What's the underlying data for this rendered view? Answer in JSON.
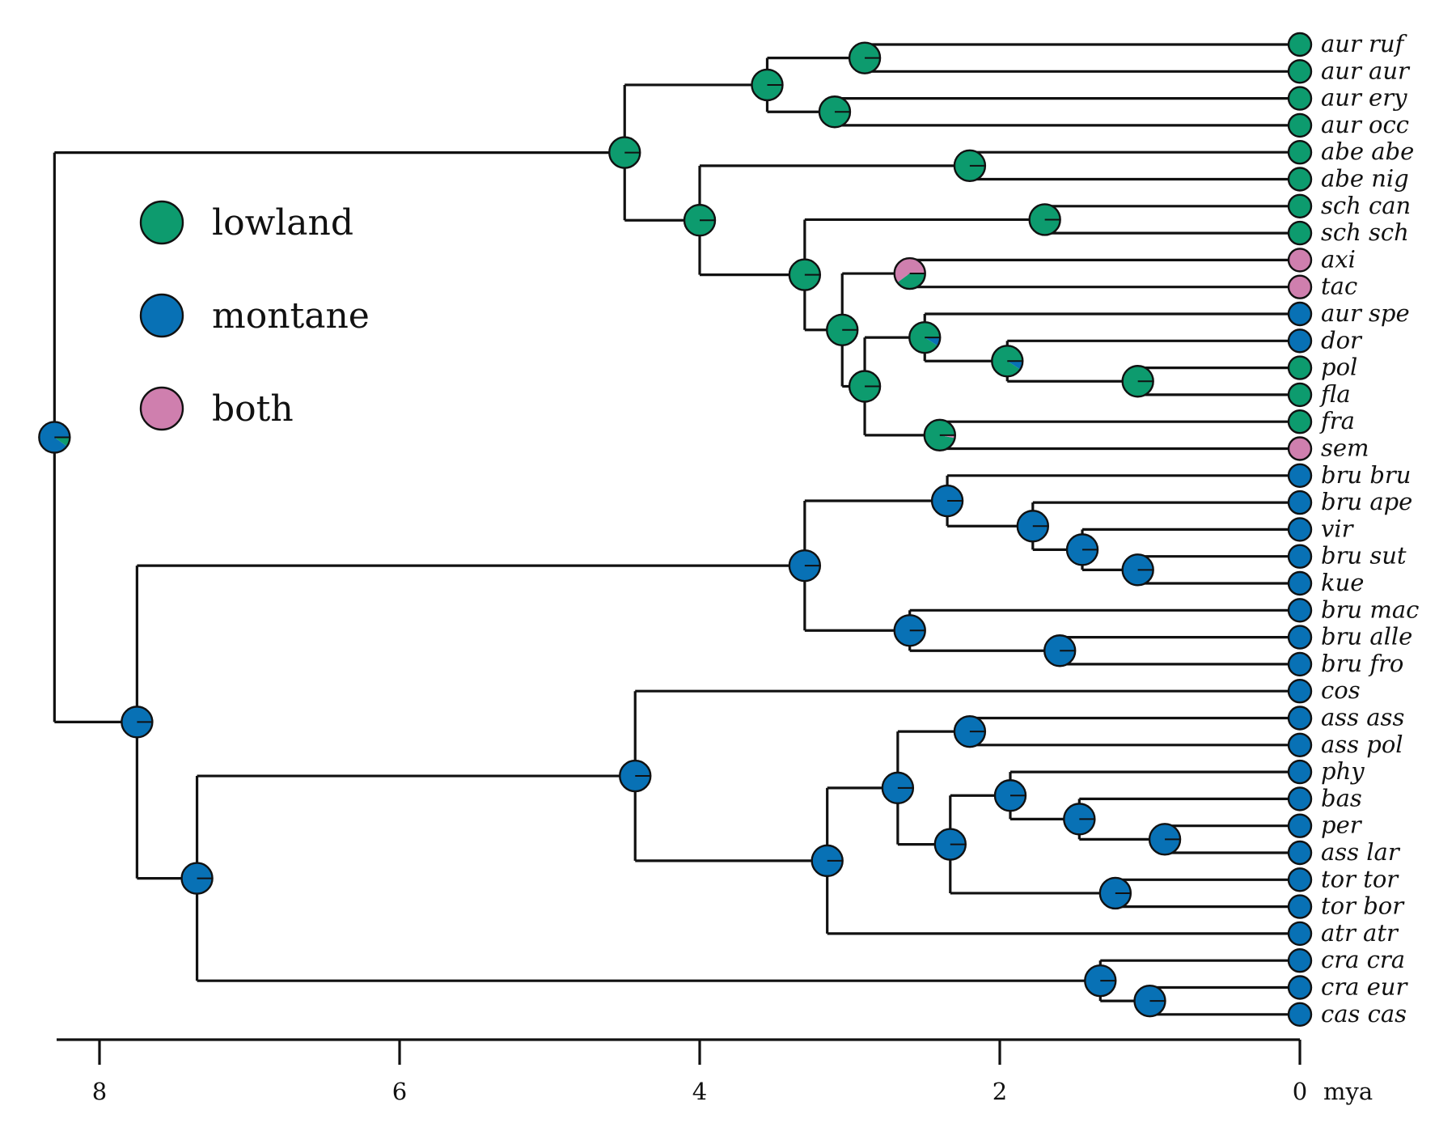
{
  "colors": {
    "lowland": "#0d9b6e",
    "montane": "#0871b5",
    "both": "#cf7fae",
    "line": "#111111"
  },
  "legend": {
    "items": [
      {
        "state": "lowland",
        "label": "lowland"
      },
      {
        "state": "montane",
        "label": "montane"
      },
      {
        "state": "both",
        "label": "both"
      }
    ]
  },
  "axis": {
    "ticks": [
      {
        "value": 8,
        "label": "8"
      },
      {
        "value": 6,
        "label": "6"
      },
      {
        "value": 4,
        "label": "4"
      },
      {
        "value": 2,
        "label": "2"
      },
      {
        "value": 0,
        "label": "0"
      }
    ],
    "unit": "mya",
    "range": [
      8.45,
      0
    ]
  },
  "tips": [
    {
      "label": "aur ruf",
      "state": "lowland"
    },
    {
      "label": "aur aur",
      "state": "lowland"
    },
    {
      "label": "aur ery",
      "state": "lowland"
    },
    {
      "label": "aur occ",
      "state": "lowland"
    },
    {
      "label": "abe abe",
      "state": "lowland"
    },
    {
      "label": "abe nig",
      "state": "lowland"
    },
    {
      "label": "sch can",
      "state": "lowland"
    },
    {
      "label": "sch sch",
      "state": "lowland"
    },
    {
      "label": "axi",
      "state": "both"
    },
    {
      "label": "tac",
      "state": "both"
    },
    {
      "label": "aur spe",
      "state": "montane"
    },
    {
      "label": "dor",
      "state": "montane"
    },
    {
      "label": "pol",
      "state": "lowland"
    },
    {
      "label": "fla",
      "state": "lowland"
    },
    {
      "label": "fra",
      "state": "lowland"
    },
    {
      "label": "sem",
      "state": "both"
    },
    {
      "label": "bru bru",
      "state": "montane"
    },
    {
      "label": "bru ape",
      "state": "montane"
    },
    {
      "label": "vir",
      "state": "montane"
    },
    {
      "label": "bru sut",
      "state": "montane"
    },
    {
      "label": "kue",
      "state": "montane"
    },
    {
      "label": "bru mac",
      "state": "montane"
    },
    {
      "label": "bru alle",
      "state": "montane"
    },
    {
      "label": "bru fro",
      "state": "montane"
    },
    {
      "label": "cos",
      "state": "montane"
    },
    {
      "label": "ass ass",
      "state": "montane"
    },
    {
      "label": "ass pol",
      "state": "montane"
    },
    {
      "label": "phy",
      "state": "montane"
    },
    {
      "label": "bas",
      "state": "montane"
    },
    {
      "label": "per",
      "state": "montane"
    },
    {
      "label": "ass lar",
      "state": "montane"
    },
    {
      "label": "tor tor",
      "state": "montane"
    },
    {
      "label": "tor bor",
      "state": "montane"
    },
    {
      "label": "atr atr",
      "state": "montane"
    },
    {
      "label": "cra cra",
      "state": "montane"
    },
    {
      "label": "cra eur",
      "state": "montane"
    },
    {
      "label": "cas cas",
      "state": "montane"
    }
  ],
  "nodes": [
    {
      "id": "n01",
      "age": 2.9,
      "children": [
        "t0",
        "t1"
      ],
      "probs": {
        "lowland": 1.0
      }
    },
    {
      "id": "n02",
      "age": 3.1,
      "children": [
        "t2",
        "t3"
      ],
      "probs": {
        "lowland": 1.0
      }
    },
    {
      "id": "n03",
      "age": 3.55,
      "children": [
        "n01",
        "n02"
      ],
      "probs": {
        "lowland": 1.0
      }
    },
    {
      "id": "n04",
      "age": 2.2,
      "children": [
        "t4",
        "t5"
      ],
      "probs": {
        "lowland": 1.0
      }
    },
    {
      "id": "n05",
      "age": 1.7,
      "children": [
        "t6",
        "t7"
      ],
      "probs": {
        "lowland": 1.0
      }
    },
    {
      "id": "n06",
      "age": 2.6,
      "children": [
        "t8",
        "t9"
      ],
      "probs": {
        "lowland": 0.4,
        "both": 0.6
      }
    },
    {
      "id": "n07",
      "age": 1.08,
      "children": [
        "t12",
        "t13"
      ],
      "probs": {
        "lowland": 1.0
      }
    },
    {
      "id": "n08",
      "age": 1.95,
      "children": [
        "t11",
        "n07"
      ],
      "probs": {
        "lowland": 0.91,
        "montane": 0.09
      }
    },
    {
      "id": "n09",
      "age": 2.5,
      "children": [
        "t10",
        "n08"
      ],
      "probs": {
        "lowland": 0.91,
        "montane": 0.09
      }
    },
    {
      "id": "n10",
      "age": 2.4,
      "children": [
        "t14",
        "t15"
      ],
      "probs": {
        "lowland": 0.97,
        "both": 0.03
      }
    },
    {
      "id": "n11",
      "age": 2.9,
      "children": [
        "n09",
        "n10"
      ],
      "probs": {
        "lowland": 1.0
      }
    },
    {
      "id": "n12",
      "age": 3.05,
      "children": [
        "n06",
        "n11"
      ],
      "probs": {
        "lowland": 1.0
      }
    },
    {
      "id": "n13",
      "age": 3.3,
      "children": [
        "n05",
        "n12"
      ],
      "probs": {
        "lowland": 1.0
      }
    },
    {
      "id": "n14",
      "age": 4.0,
      "children": [
        "n04",
        "n13"
      ],
      "probs": {
        "lowland": 1.0
      }
    },
    {
      "id": "n15",
      "age": 4.5,
      "children": [
        "n03",
        "n14"
      ],
      "probs": {
        "lowland": 1.0
      }
    },
    {
      "id": "n16",
      "age": 1.08,
      "children": [
        "t19",
        "t20"
      ],
      "probs": {
        "montane": 1.0
      }
    },
    {
      "id": "n17",
      "age": 1.45,
      "children": [
        "t18",
        "n16"
      ],
      "probs": {
        "montane": 1.0
      }
    },
    {
      "id": "n18",
      "age": 1.78,
      "children": [
        "t17",
        "n17"
      ],
      "probs": {
        "montane": 1.0
      }
    },
    {
      "id": "n19",
      "age": 2.35,
      "children": [
        "t16",
        "n18"
      ],
      "probs": {
        "montane": 1.0
      }
    },
    {
      "id": "n20",
      "age": 1.6,
      "children": [
        "t22",
        "t23"
      ],
      "probs": {
        "montane": 1.0
      }
    },
    {
      "id": "n21",
      "age": 2.6,
      "children": [
        "t21",
        "n20"
      ],
      "probs": {
        "montane": 1.0
      }
    },
    {
      "id": "n22",
      "age": 3.3,
      "children": [
        "n19",
        "n21"
      ],
      "probs": {
        "montane": 1.0
      }
    },
    {
      "id": "n23",
      "age": 2.2,
      "children": [
        "t25",
        "t26"
      ],
      "probs": {
        "montane": 1.0
      }
    },
    {
      "id": "n24",
      "age": 0.9,
      "children": [
        "t29",
        "t30"
      ],
      "probs": {
        "montane": 1.0
      }
    },
    {
      "id": "n25",
      "age": 1.47,
      "children": [
        "t28",
        "n24"
      ],
      "probs": {
        "montane": 1.0
      }
    },
    {
      "id": "n26",
      "age": 1.93,
      "children": [
        "t27",
        "n25"
      ],
      "probs": {
        "montane": 1.0
      }
    },
    {
      "id": "n27",
      "age": 1.23,
      "children": [
        "t31",
        "t32"
      ],
      "probs": {
        "montane": 1.0
      }
    },
    {
      "id": "n28",
      "age": 2.33,
      "children": [
        "n26",
        "n27"
      ],
      "probs": {
        "montane": 1.0
      }
    },
    {
      "id": "n29",
      "age": 2.68,
      "children": [
        "n23",
        "n28"
      ],
      "probs": {
        "montane": 1.0
      }
    },
    {
      "id": "n30",
      "age": 3.15,
      "children": [
        "n29",
        "t33"
      ],
      "probs": {
        "montane": 1.0
      }
    },
    {
      "id": "n31",
      "age": 4.43,
      "children": [
        "t24",
        "n30"
      ],
      "probs": {
        "montane": 1.0
      }
    },
    {
      "id": "n32",
      "age": 1.0,
      "children": [
        "t35",
        "t36"
      ],
      "probs": {
        "montane": 1.0
      }
    },
    {
      "id": "n33",
      "age": 1.33,
      "children": [
        "t34",
        "n32"
      ],
      "probs": {
        "montane": 1.0
      }
    },
    {
      "id": "n34",
      "age": 7.35,
      "children": [
        "n31",
        "n33"
      ],
      "probs": {
        "montane": 1.0
      }
    },
    {
      "id": "n35",
      "age": 7.75,
      "children": [
        "n22",
        "n34"
      ],
      "probs": {
        "montane": 1.0
      }
    },
    {
      "id": "n36",
      "age": 8.3,
      "children": [
        "n15",
        "n35"
      ],
      "probs": {
        "montane": 0.9,
        "lowland": 0.1
      }
    }
  ]
}
